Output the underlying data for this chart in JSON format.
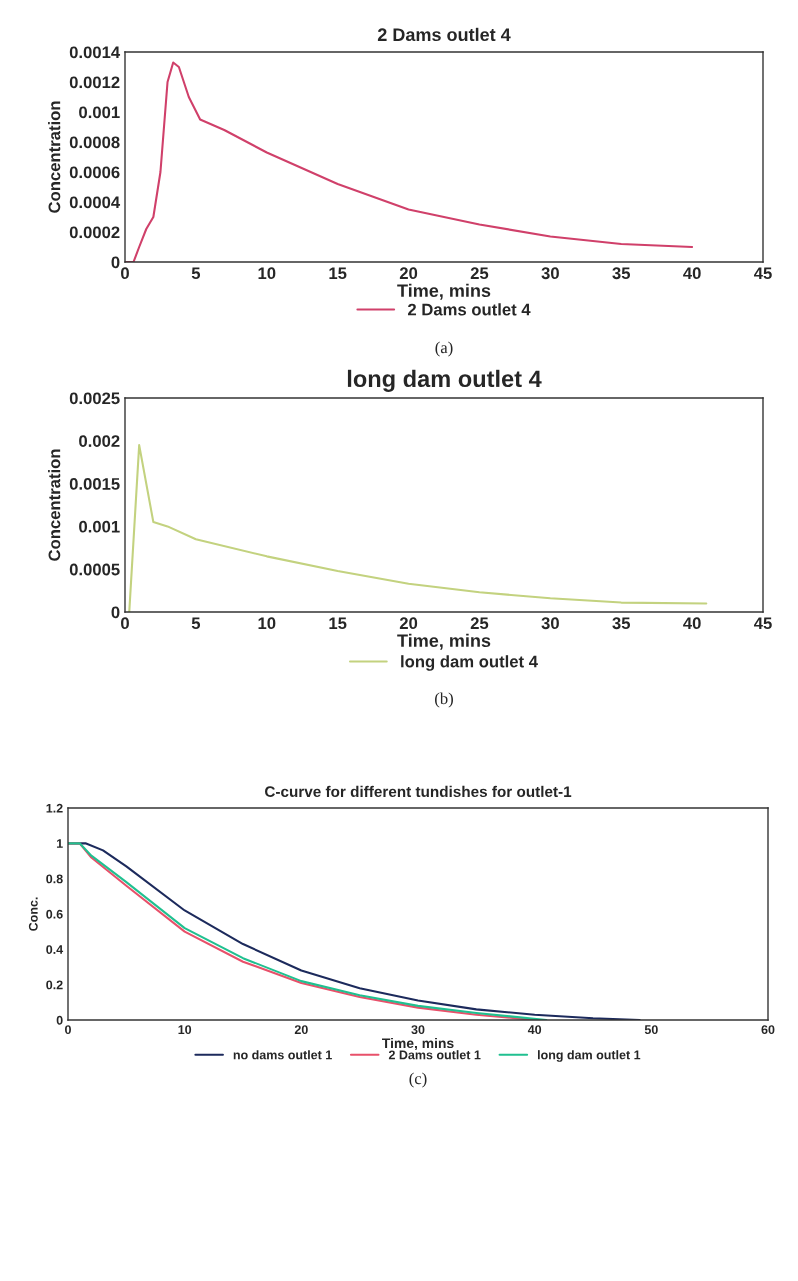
{
  "chart_data": [
    {
      "type": "line",
      "title": "2 Dams outlet 4",
      "xlabel": "Time, mins",
      "ylabel": "Concentration",
      "xlim": [
        0,
        45
      ],
      "xticks": [
        0,
        5,
        10,
        15,
        20,
        25,
        30,
        35,
        40,
        45
      ],
      "ylim": [
        0,
        0.0014
      ],
      "yticks": [
        0,
        0.0002,
        0.0004,
        0.0006,
        0.0008,
        0.001,
        0.0012,
        0.0014
      ],
      "grid": false,
      "legend": "bottom",
      "annotations": [
        "(a)"
      ],
      "series": [
        {
          "name": "2 Dams outlet 4",
          "color": "#d0406a",
          "x": [
            0,
            0.6,
            1,
            1.5,
            2,
            2.5,
            3,
            3.4,
            3.8,
            4.5,
            5.3,
            7,
            10,
            15,
            20,
            25,
            30,
            35,
            40
          ],
          "values": [
            0,
            0,
            0.0001,
            0.00022,
            0.0003,
            0.0006,
            0.0012,
            0.00133,
            0.0013,
            0.0011,
            0.00095,
            0.00088,
            0.00073,
            0.00052,
            0.00035,
            0.00025,
            0.00017,
            0.00012,
            0.0001
          ]
        }
      ]
    },
    {
      "type": "line",
      "title": "long dam outlet 4",
      "xlabel": "Time, mins",
      "ylabel": "Concentration",
      "xlim": [
        0,
        45
      ],
      "xticks": [
        0,
        5,
        10,
        15,
        20,
        25,
        30,
        35,
        40,
        45
      ],
      "ylim": [
        0,
        0.0025
      ],
      "yticks": [
        0,
        0.0005,
        0.001,
        0.0015,
        0.002,
        0.0025
      ],
      "grid": false,
      "legend": "bottom",
      "annotations": [
        "(b)"
      ],
      "series": [
        {
          "name": "long dam outlet 4",
          "color": "#c3d27f",
          "x": [
            0.3,
            1,
            2,
            3,
            5,
            10,
            15,
            20,
            25,
            30,
            35,
            41
          ],
          "values": [
            0,
            0.00195,
            0.00105,
            0.001,
            0.00085,
            0.00065,
            0.00048,
            0.00033,
            0.00023,
            0.00016,
            0.00011,
            0.0001
          ]
        }
      ]
    },
    {
      "type": "line",
      "title": "C-curve for different tundishes for outlet-1",
      "xlabel": "Time, mins",
      "ylabel": "Conc.",
      "xlim": [
        0,
        60
      ],
      "xticks": [
        0,
        10,
        20,
        30,
        40,
        50,
        60
      ],
      "ylim": [
        0,
        1.2
      ],
      "yticks": [
        0,
        0.2,
        0.4,
        0.6,
        0.8,
        1,
        1.2
      ],
      "grid": false,
      "legend": "bottom",
      "annotations": [
        "(c)"
      ],
      "series": [
        {
          "name": "no dams outlet 1",
          "color": "#1c2a5c",
          "x": [
            0,
            1.5,
            3,
            5,
            10,
            15,
            20,
            25,
            30,
            35,
            40,
            45,
            49
          ],
          "values": [
            1,
            1,
            0.96,
            0.87,
            0.62,
            0.43,
            0.28,
            0.18,
            0.11,
            0.06,
            0.03,
            0.01,
            0
          ]
        },
        {
          "name": "2 Dams outlet 1",
          "color": "#e8506a",
          "x": [
            0,
            1,
            2,
            5,
            10,
            15,
            20,
            25,
            30,
            35,
            40
          ],
          "values": [
            1,
            1,
            0.92,
            0.76,
            0.5,
            0.33,
            0.21,
            0.13,
            0.07,
            0.03,
            0
          ]
        },
        {
          "name": "long dam outlet 1",
          "color": "#20c090",
          "x": [
            0,
            1,
            2,
            5,
            10,
            15,
            20,
            25,
            30,
            35,
            41
          ],
          "values": [
            1,
            1,
            0.93,
            0.78,
            0.52,
            0.35,
            0.22,
            0.14,
            0.08,
            0.04,
            0
          ]
        }
      ]
    }
  ]
}
